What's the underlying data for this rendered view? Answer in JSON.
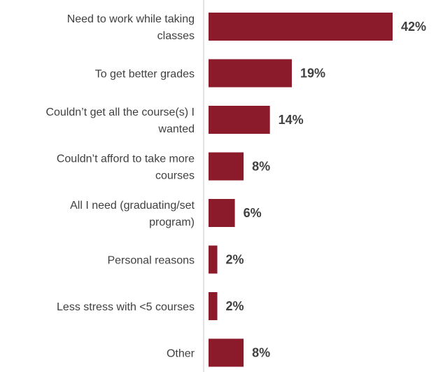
{
  "chart_data": {
    "type": "bar",
    "orientation": "horizontal",
    "categories": [
      [
        "Need to work while taking",
        "classes"
      ],
      [
        "To get better grades"
      ],
      [
        "Couldn’t get all the course(s) I",
        "wanted"
      ],
      [
        "Couldn’t afford to take more",
        "courses"
      ],
      [
        "All I need (graduating/set",
        "program)"
      ],
      [
        "Personal reasons"
      ],
      [
        "Less stress with <5 courses"
      ],
      [
        "Other"
      ]
    ],
    "values": [
      42,
      19,
      14,
      8,
      6,
      2,
      2,
      8
    ],
    "value_labels": [
      "42%",
      "19%",
      "14%",
      "8%",
      "6%",
      "2%",
      "2%",
      "8%"
    ],
    "bar_color": "#8b1a2b",
    "axis_color": "#d9d9d9",
    "text_color": "#404040",
    "xlim": [
      0,
      42
    ],
    "grid": false,
    "legend": "none"
  }
}
